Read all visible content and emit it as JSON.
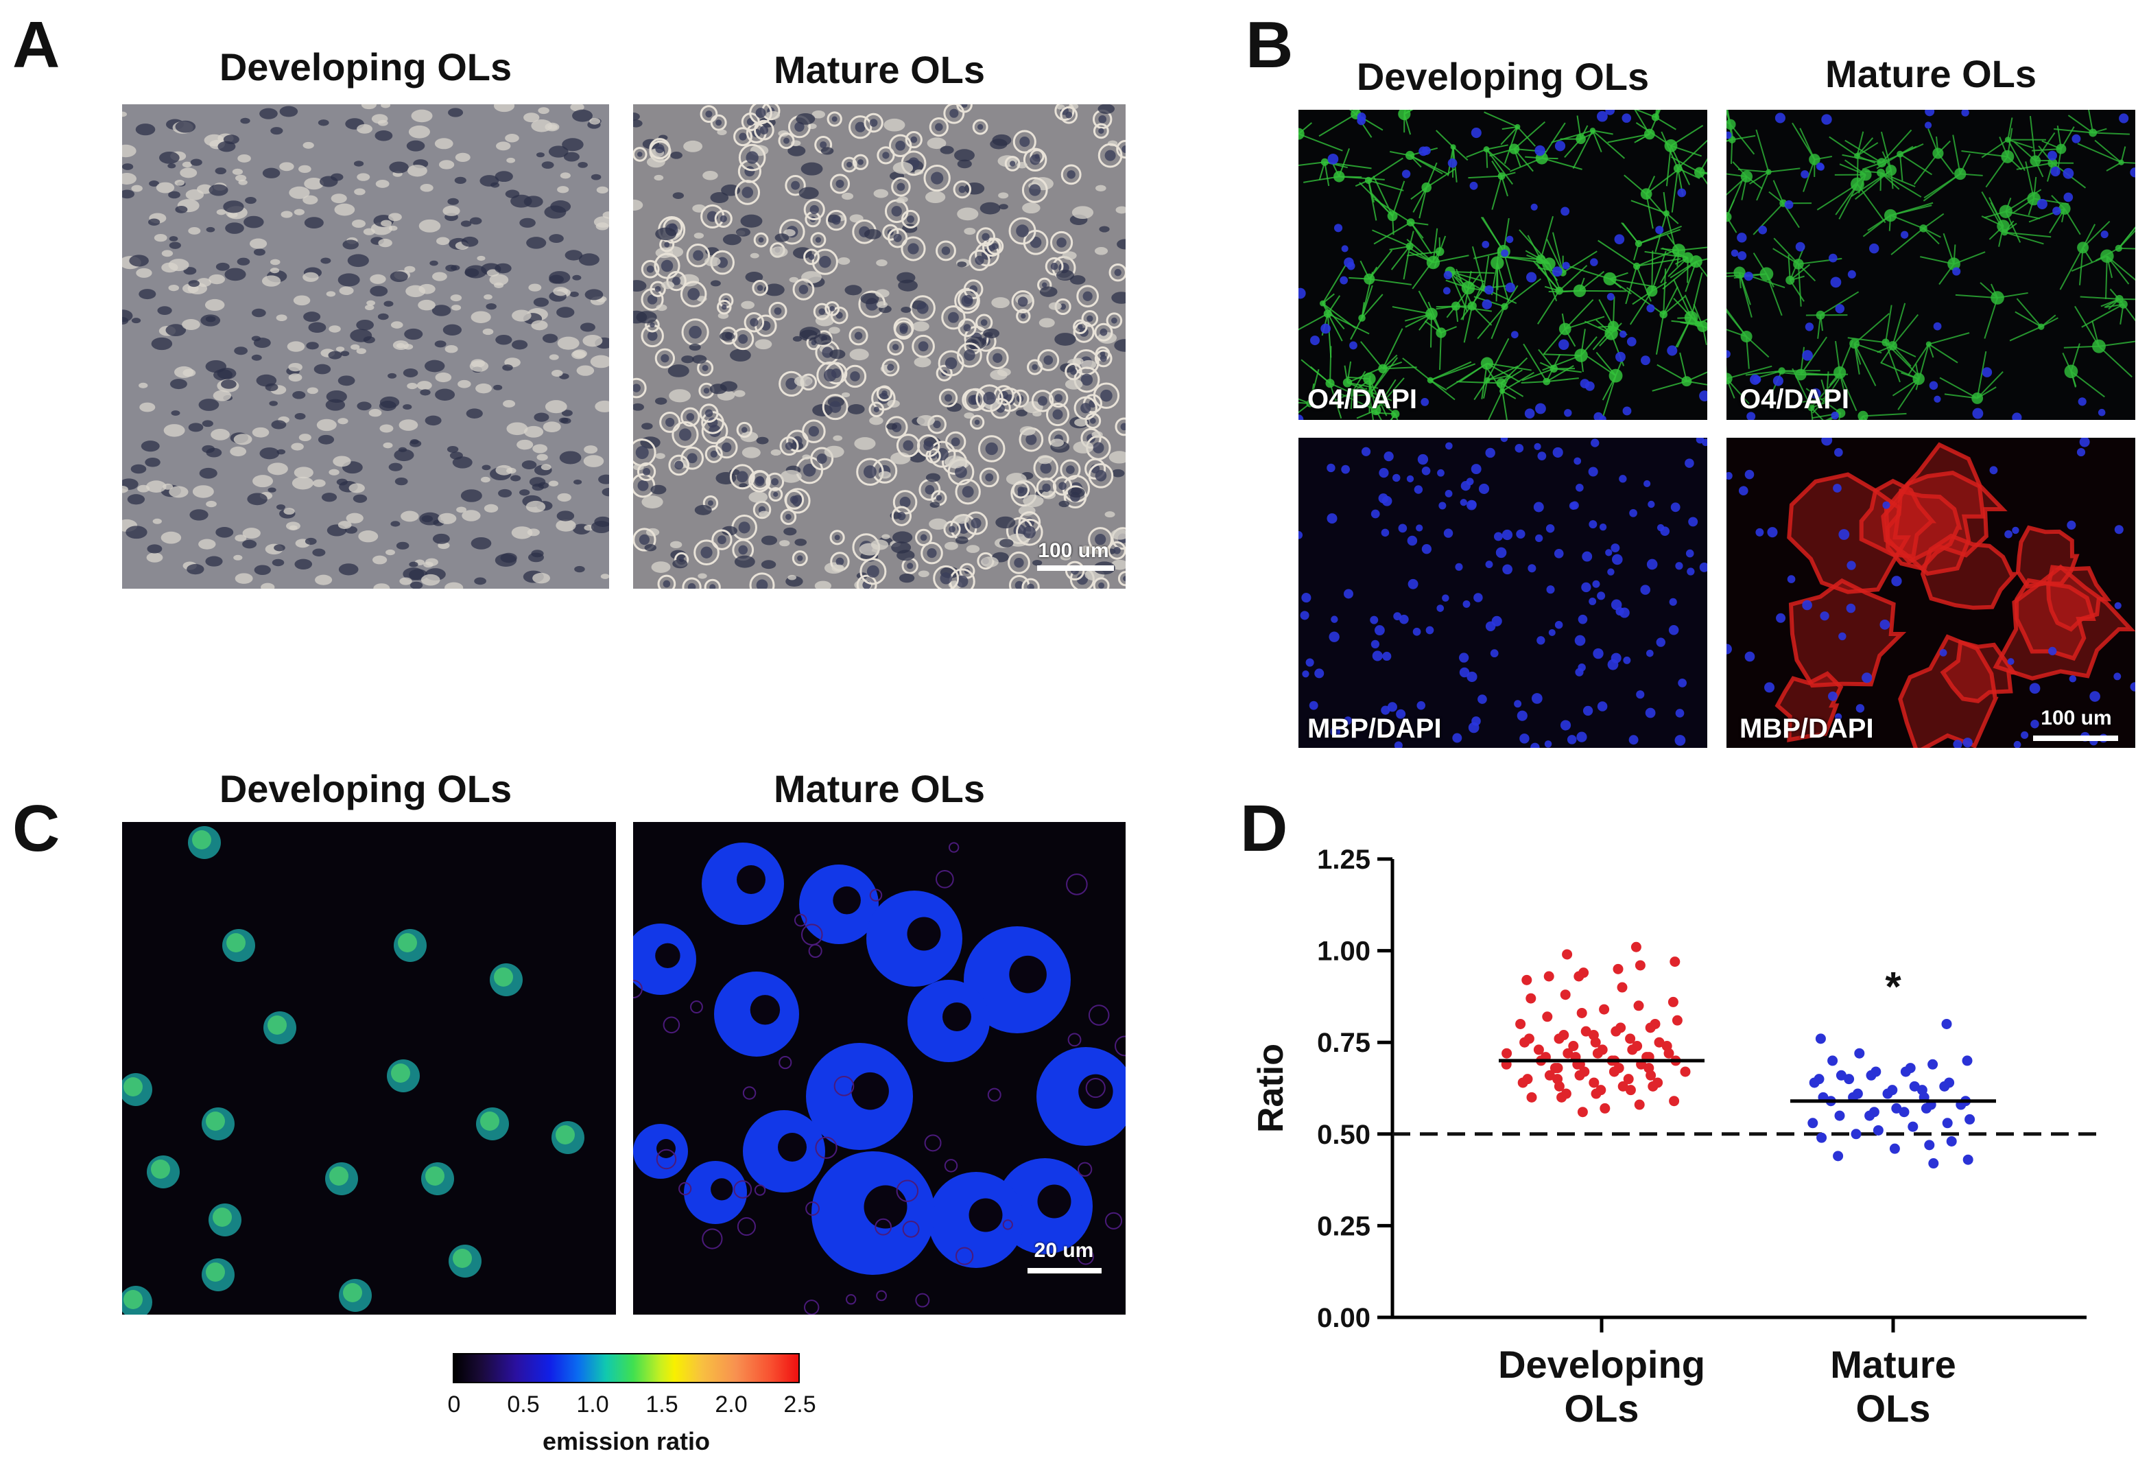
{
  "panels": {
    "A": {
      "letter": "A",
      "left_title": "Developing OLs",
      "right_title": "Mature OLs",
      "scale_bar": "100 um"
    },
    "B": {
      "letter": "B",
      "left_title": "Developing OLs",
      "right_title": "Mature OLs",
      "top_left_label": "O4/DAPI",
      "top_right_label": "O4/DAPI",
      "bottom_left_label": "MBP/DAPI",
      "bottom_right_label": "MBP/DAPI",
      "scale_bar": "100 um"
    },
    "C": {
      "letter": "C",
      "left_title": "Developing OLs",
      "right_title": "Mature OLs",
      "scale_bar": "20 um",
      "colorbar": {
        "ticks": [
          "0",
          "0.5",
          "1.0",
          "1.5",
          "2.0",
          "2.5"
        ],
        "title": "emission ratio"
      }
    },
    "D": {
      "letter": "D"
    }
  },
  "colors": {
    "developing": "#e0242b",
    "mature": "#2a32d6",
    "green_stain": "#33c23a",
    "red_stain": "#d8201c",
    "dapi": "#2530d8"
  },
  "chart_data": {
    "type": "scatter",
    "ylabel": "Ratio",
    "xlabel": "",
    "ylim": [
      0,
      1.25
    ],
    "yticks": [
      0.0,
      0.25,
      0.5,
      0.75,
      1.0,
      1.25
    ],
    "ytick_labels": [
      "0.00",
      "0.25",
      "0.50",
      "0.75",
      "1.00",
      "1.25"
    ],
    "categories": [
      "Developing OLs",
      "Mature OLs"
    ],
    "category_lines": [
      [
        "Developing",
        "OLs"
      ],
      [
        "Mature",
        "OLs"
      ]
    ],
    "reference_line": 0.5,
    "annotations": [
      {
        "category": "Mature OLs",
        "text": "*",
        "y": 0.92
      }
    ],
    "series": [
      {
        "category": "Developing OLs",
        "mean": 0.7,
        "values": [
          1.01,
          0.99,
          0.97,
          0.96,
          0.95,
          0.94,
          0.93,
          0.93,
          0.92,
          0.9,
          0.88,
          0.87,
          0.86,
          0.85,
          0.84,
          0.83,
          0.82,
          0.81,
          0.8,
          0.8,
          0.79,
          0.79,
          0.78,
          0.78,
          0.77,
          0.77,
          0.76,
          0.76,
          0.76,
          0.75,
          0.75,
          0.75,
          0.74,
          0.74,
          0.74,
          0.73,
          0.73,
          0.73,
          0.72,
          0.72,
          0.72,
          0.72,
          0.71,
          0.71,
          0.71,
          0.71,
          0.7,
          0.7,
          0.7,
          0.7,
          0.69,
          0.69,
          0.69,
          0.69,
          0.68,
          0.68,
          0.68,
          0.68,
          0.67,
          0.67,
          0.67,
          0.66,
          0.66,
          0.66,
          0.65,
          0.65,
          0.65,
          0.64,
          0.64,
          0.64,
          0.63,
          0.63,
          0.63,
          0.62,
          0.62,
          0.61,
          0.61,
          0.6,
          0.6,
          0.59,
          0.58,
          0.57,
          0.56
        ]
      },
      {
        "category": "Mature OLs",
        "mean": 0.59,
        "values": [
          0.8,
          0.76,
          0.72,
          0.7,
          0.7,
          0.69,
          0.68,
          0.67,
          0.67,
          0.66,
          0.66,
          0.65,
          0.65,
          0.64,
          0.64,
          0.63,
          0.63,
          0.62,
          0.62,
          0.61,
          0.61,
          0.6,
          0.6,
          0.6,
          0.59,
          0.59,
          0.58,
          0.58,
          0.57,
          0.57,
          0.56,
          0.56,
          0.55,
          0.55,
          0.54,
          0.53,
          0.53,
          0.52,
          0.51,
          0.5,
          0.49,
          0.48,
          0.47,
          0.46,
          0.44,
          0.43,
          0.42
        ]
      }
    ]
  }
}
